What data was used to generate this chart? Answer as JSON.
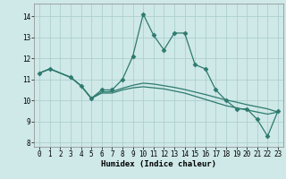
{
  "xlabel": "Humidex (Indice chaleur)",
  "xlim": [
    -0.5,
    23.5
  ],
  "ylim": [
    7.8,
    14.6
  ],
  "yticks": [
    8,
    9,
    10,
    11,
    12,
    13,
    14
  ],
  "xticks": [
    0,
    1,
    2,
    3,
    4,
    5,
    6,
    7,
    8,
    9,
    10,
    11,
    12,
    13,
    14,
    15,
    16,
    17,
    18,
    19,
    20,
    21,
    22,
    23
  ],
  "bg_color": "#cfe8e8",
  "grid_color": "#a8cccc",
  "line_color": "#2d7a6e",
  "series1_x": [
    0,
    1,
    3,
    4,
    5,
    6,
    7,
    8,
    9,
    10,
    11,
    12,
    13,
    14,
    15,
    16,
    17,
    18,
    19,
    20,
    21,
    22,
    23
  ],
  "series1_y": [
    11.3,
    11.5,
    11.1,
    10.7,
    10.1,
    10.5,
    10.5,
    11.0,
    12.1,
    14.1,
    13.1,
    12.4,
    13.2,
    13.2,
    11.7,
    11.5,
    10.5,
    10.0,
    9.6,
    9.6,
    9.1,
    8.3,
    9.5
  ],
  "series2_x": [
    0,
    1,
    3,
    4,
    5,
    6,
    7,
    8,
    9,
    10,
    11,
    12,
    13,
    14,
    15,
    16,
    17,
    18,
    19,
    20,
    21,
    22,
    23
  ],
  "series2_y": [
    11.3,
    11.5,
    11.1,
    10.7,
    10.1,
    10.35,
    10.35,
    10.5,
    10.6,
    10.65,
    10.6,
    10.55,
    10.45,
    10.35,
    10.2,
    10.05,
    9.9,
    9.75,
    9.65,
    9.55,
    9.45,
    9.35,
    9.45
  ],
  "series3_x": [
    0,
    1,
    3,
    4,
    5,
    6,
    7,
    8,
    9,
    10,
    11,
    12,
    13,
    14,
    15,
    16,
    17,
    18,
    19,
    20,
    21,
    22,
    23
  ],
  "series3_y": [
    11.3,
    11.5,
    11.1,
    10.7,
    10.1,
    10.4,
    10.42,
    10.58,
    10.72,
    10.82,
    10.78,
    10.7,
    10.62,
    10.52,
    10.4,
    10.28,
    10.15,
    10.02,
    9.92,
    9.8,
    9.7,
    9.6,
    9.45
  ]
}
